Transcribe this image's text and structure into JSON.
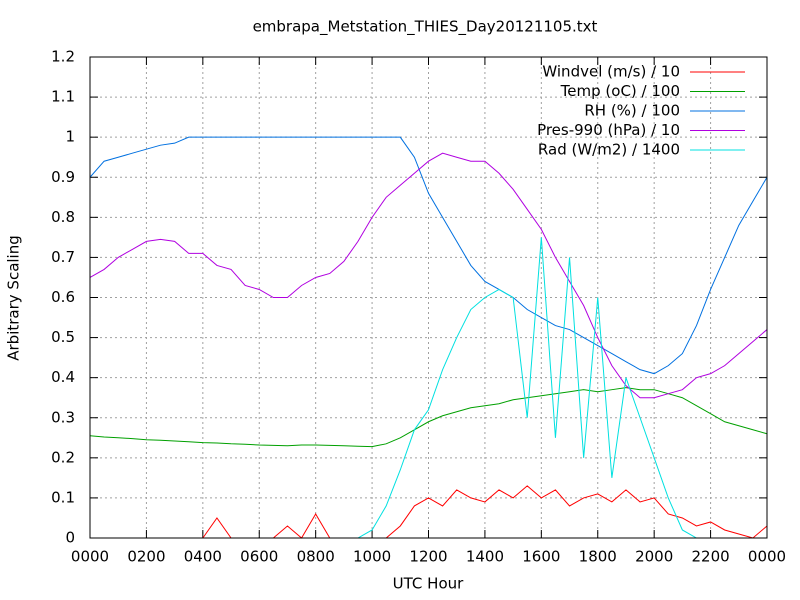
{
  "chart_data": {
    "type": "line",
    "title": "embrapa_Metstation_THIES_Day20121105.txt",
    "x_label": "UTC Hour",
    "y_label": "Arbitrary Scaling",
    "x": [
      0,
      0.5,
      1,
      1.5,
      2,
      2.5,
      3,
      3.5,
      4,
      4.5,
      5,
      5.5,
      6,
      6.5,
      7,
      7.5,
      8,
      8.5,
      9,
      9.5,
      10,
      10.5,
      11,
      11.5,
      12,
      12.5,
      13,
      13.5,
      14,
      14.5,
      15,
      15.5,
      16,
      16.5,
      17,
      17.5,
      18,
      18.5,
      19,
      19.5,
      20,
      20.5,
      21,
      21.5,
      22,
      22.5,
      23,
      23.5,
      24
    ],
    "series": [
      {
        "name": "Windvel (m/s) / 10",
        "color": "#ff0000",
        "values": [
          0,
          0,
          0,
          0,
          0,
          0,
          0,
          0,
          0,
          0.05,
          0,
          0,
          0,
          0,
          0.03,
          0,
          0.06,
          0,
          0,
          0,
          0,
          0,
          0.03,
          0.08,
          0.1,
          0.08,
          0.12,
          0.1,
          0.09,
          0.12,
          0.1,
          0.13,
          0.1,
          0.12,
          0.08,
          0.1,
          0.11,
          0.09,
          0.12,
          0.09,
          0.1,
          0.06,
          0.05,
          0.03,
          0.04,
          0.02,
          0.01,
          0,
          0.03
        ]
      },
      {
        "name": "Temp (oC) / 100",
        "color": "#00a000",
        "values": [
          0.255,
          0.252,
          0.25,
          0.248,
          0.245,
          0.244,
          0.242,
          0.24,
          0.238,
          0.237,
          0.235,
          0.234,
          0.232,
          0.231,
          0.23,
          0.232,
          0.232,
          0.231,
          0.23,
          0.229,
          0.228,
          0.235,
          0.25,
          0.27,
          0.29,
          0.305,
          0.315,
          0.325,
          0.33,
          0.335,
          0.345,
          0.35,
          0.355,
          0.36,
          0.365,
          0.37,
          0.365,
          0.37,
          0.375,
          0.37,
          0.37,
          0.36,
          0.35,
          0.33,
          0.31,
          0.29,
          0.28,
          0.27,
          0.26
        ]
      },
      {
        "name": "RH (%) / 100",
        "color": "#0070e0",
        "values": [
          0.9,
          0.94,
          0.95,
          0.96,
          0.97,
          0.98,
          0.985,
          1,
          1,
          1,
          1,
          1,
          1,
          1,
          1,
          1,
          1,
          1,
          1,
          1,
          1,
          1,
          1,
          0.95,
          0.86,
          0.8,
          0.74,
          0.68,
          0.64,
          0.62,
          0.6,
          0.57,
          0.55,
          0.53,
          0.52,
          0.5,
          0.48,
          0.46,
          0.44,
          0.42,
          0.41,
          0.43,
          0.46,
          0.53,
          0.62,
          0.7,
          0.78,
          0.84,
          0.9
        ]
      },
      {
        "name": "Pres-990 (hPa) / 10",
        "color": "#b000e0",
        "values": [
          0.65,
          0.67,
          0.7,
          0.72,
          0.74,
          0.745,
          0.74,
          0.71,
          0.71,
          0.68,
          0.67,
          0.63,
          0.62,
          0.6,
          0.6,
          0.63,
          0.65,
          0.66,
          0.69,
          0.74,
          0.8,
          0.85,
          0.88,
          0.91,
          0.94,
          0.96,
          0.95,
          0.94,
          0.94,
          0.91,
          0.87,
          0.82,
          0.77,
          0.7,
          0.64,
          0.58,
          0.5,
          0.43,
          0.38,
          0.35,
          0.35,
          0.36,
          0.37,
          0.4,
          0.41,
          0.43,
          0.46,
          0.49,
          0.52
        ]
      },
      {
        "name": "Rad (W/m2) / 1400",
        "color": "#00e0e0",
        "values": [
          0,
          0,
          0,
          0,
          0,
          0,
          0,
          0,
          0,
          0,
          0,
          0,
          0,
          0,
          0,
          0,
          0,
          0,
          0,
          0,
          0.02,
          0.08,
          0.17,
          0.27,
          0.32,
          0.42,
          0.5,
          0.57,
          0.6,
          0.62,
          0.6,
          0.3,
          0.75,
          0.25,
          0.7,
          0.2,
          0.6,
          0.15,
          0.4,
          0.3,
          0.2,
          0.1,
          0.02,
          0,
          0,
          0,
          0,
          0,
          0
        ]
      }
    ],
    "xlim": [
      0,
      24
    ],
    "xticks": [
      {
        "value": 0,
        "label": "0000"
      },
      {
        "value": 2,
        "label": "0200"
      },
      {
        "value": 4,
        "label": "0400"
      },
      {
        "value": 6,
        "label": "0600"
      },
      {
        "value": 8,
        "label": "0800"
      },
      {
        "value": 10,
        "label": "1000"
      },
      {
        "value": 12,
        "label": "1200"
      },
      {
        "value": 14,
        "label": "1400"
      },
      {
        "value": 16,
        "label": "1600"
      },
      {
        "value": 18,
        "label": "1800"
      },
      {
        "value": 20,
        "label": "2000"
      },
      {
        "value": 22,
        "label": "2200"
      },
      {
        "value": 24,
        "label": "0000"
      }
    ],
    "ylim": [
      0,
      1.2
    ],
    "yticks": [
      0,
      0.1,
      0.2,
      0.3,
      0.4,
      0.5,
      0.6,
      0.7,
      0.8,
      0.9,
      1,
      1.1,
      1.2
    ],
    "grid": true,
    "legend": "top-right"
  }
}
